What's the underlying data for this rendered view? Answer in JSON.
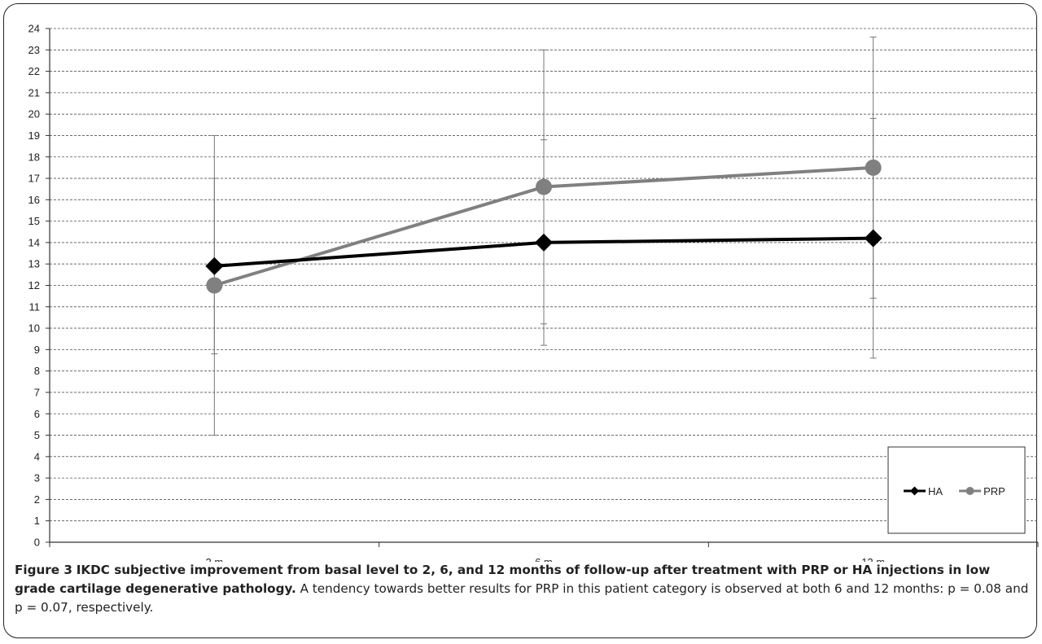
{
  "chart_data": {
    "type": "line",
    "categories": [
      "2 m",
      "6 m",
      "12 m"
    ],
    "ylim": [
      0,
      24
    ],
    "yticks": [
      0,
      1,
      2,
      3,
      4,
      5,
      6,
      7,
      8,
      9,
      10,
      11,
      12,
      13,
      14,
      15,
      16,
      17,
      18,
      19,
      20,
      21,
      22,
      23,
      24
    ],
    "grid": true,
    "legend_position": "bottom-right",
    "series": [
      {
        "name": "HA",
        "color": "#000000",
        "marker": "diamond",
        "values": [
          12.9,
          14.0,
          14.2
        ],
        "error_low": [
          8.8,
          9.2,
          8.6
        ],
        "error_high": [
          17.0,
          18.8,
          19.8
        ]
      },
      {
        "name": "PRP",
        "color": "#808080",
        "marker": "circle",
        "values": [
          12.0,
          16.6,
          17.5
        ],
        "error_low": [
          5.0,
          10.2,
          11.4
        ],
        "error_high": [
          19.0,
          23.0,
          23.6
        ]
      }
    ]
  },
  "caption": {
    "label": "Figure 3",
    "title": "IKDC subjective improvement from basal level to 2, 6, and 12 months of follow-up after treatment with PRP or HA injections in low grade cartilage degenerative pathology.",
    "text": "A tendency towards better results for PRP in this patient category is observed at both 6 and 12 months: p = 0.08 and p = 0.07, respectively."
  }
}
